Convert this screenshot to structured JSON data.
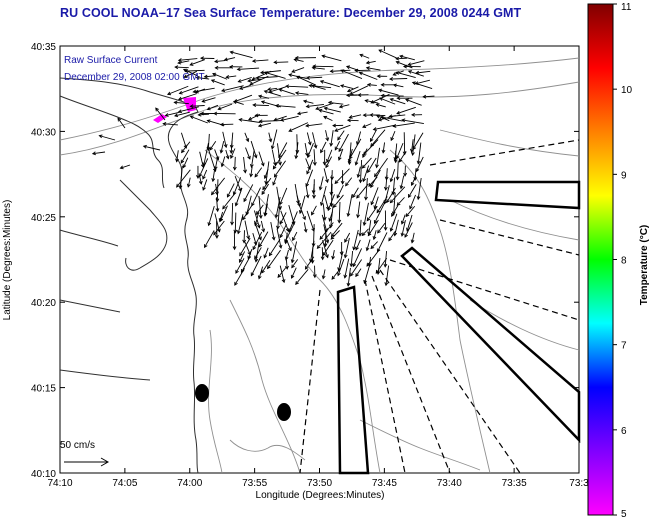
{
  "title": "RU COOL  NOAA–17  Sea Surface Temperature:  December 29, 2008 0244 GMT",
  "overlay": {
    "line1": "Raw Surface Current",
    "line2": "December 29, 2008 02:00 GMT"
  },
  "scale_label": "50 cm/s",
  "axes": {
    "xlabel": "Longitude (Degrees:Minutes)",
    "ylabel": "Latitude (Degrees:Minutes)",
    "x_ticks": [
      "74:10",
      "74:05",
      "74:00",
      "73:55",
      "73:50",
      "73:45",
      "73:40",
      "73:35",
      "73:3"
    ],
    "y_ticks": [
      "40:35",
      "40:30",
      "40:25",
      "40:20",
      "40:15",
      "40:10"
    ]
  },
  "colorbar": {
    "label": "Temperature (°C)",
    "ticks": [
      "11",
      "10",
      "9",
      "8",
      "7",
      "6",
      "5"
    ],
    "min": 5,
    "max": 11,
    "colors": [
      "#ff00ff",
      "#8000ff",
      "#0000ff",
      "#00ffff",
      "#00ff00",
      "#ffff00",
      "#ff8000",
      "#ff0000",
      "#800000"
    ]
  },
  "map_extent": {
    "lon_west_deg": -74.1667,
    "lon_east_deg": -73.5,
    "lat_south_deg": 40.1667,
    "lat_north_deg": 40.5833
  },
  "markers": [
    {
      "name": "black-dot",
      "lon": -73.98,
      "lat": 40.245
    },
    {
      "name": "black-dot",
      "lon": -73.87,
      "lat": 40.225
    }
  ]
}
